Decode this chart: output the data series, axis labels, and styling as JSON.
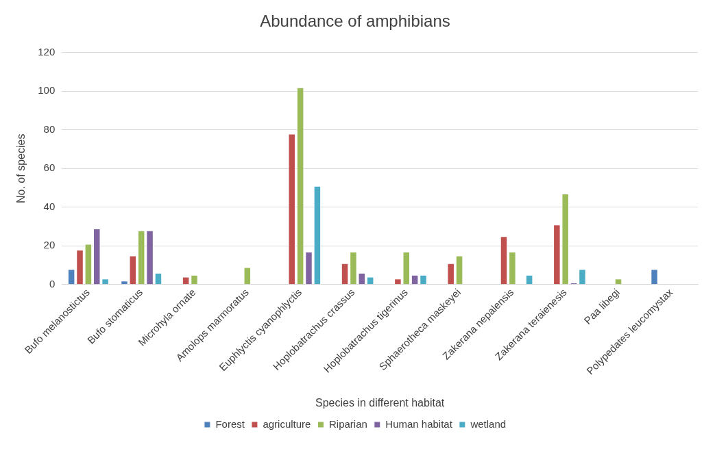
{
  "chart_data": {
    "type": "bar",
    "title": "Abundance of amphibians",
    "xlabel": "Species in different habitat",
    "ylabel": "No. of species",
    "categories": [
      "Bufo melanostictus",
      "Bufo stomaticus",
      "Microhyla ornate",
      "Amolops marmoratus",
      "Euphlyctis cyanophlyctis",
      "Hoplobatrachus crassus",
      "Hoplobatrachus tigerinus",
      "Sphaerotheca maskeyei",
      "Zakerana nepalensis",
      "Zakerana teraienesis",
      "Paa libegi",
      "Polypedates leucomystax"
    ],
    "series": [
      {
        "name": "Forest",
        "color": "#4f81bd",
        "values": [
          8,
          2,
          null,
          null,
          null,
          null,
          null,
          null,
          null,
          null,
          null,
          8
        ]
      },
      {
        "name": "agriculture",
        "color": "#c0504d",
        "values": [
          18,
          15,
          4,
          null,
          78,
          11,
          3,
          11,
          25,
          31,
          null,
          null
        ]
      },
      {
        "name": "Riparian",
        "color": "#9bbb59",
        "values": [
          21,
          28,
          5,
          9,
          102,
          17,
          17,
          15,
          17,
          47,
          3,
          null
        ]
      },
      {
        "name": "Human habitat",
        "color": "#8064a2",
        "values": [
          29,
          28,
          null,
          null,
          17,
          6,
          5,
          null,
          null,
          1,
          null,
          null
        ]
      },
      {
        "name": "wetland",
        "color": "#4bacc6",
        "values": [
          3,
          6,
          null,
          null,
          51,
          4,
          5,
          null,
          5,
          8,
          null,
          null
        ]
      }
    ],
    "ylim": [
      0,
      120
    ],
    "yticks": [
      0,
      20,
      40,
      60,
      80,
      100,
      120
    ],
    "grid": "y",
    "legend": "bottom"
  }
}
